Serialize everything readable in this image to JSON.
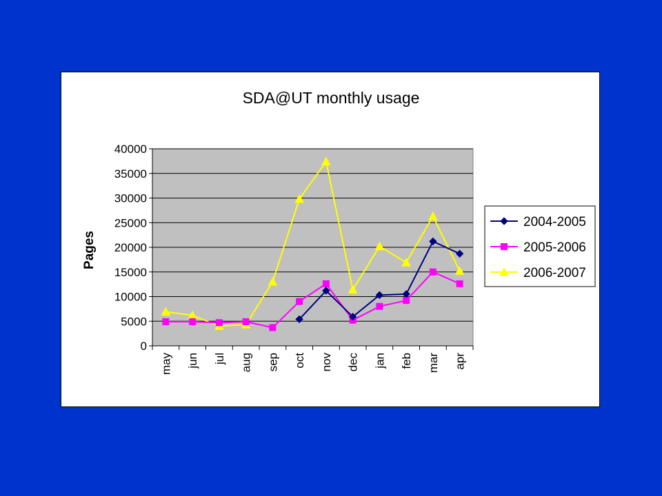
{
  "slide": {
    "background_color": "#0033cc"
  },
  "chart_data": {
    "type": "line",
    "title": "SDA@UT monthly usage",
    "xlabel": "",
    "ylabel": "Pages",
    "categories": [
      "may",
      "jun",
      "jul",
      "aug",
      "sep",
      "oct",
      "nov",
      "dec",
      "jan",
      "feb",
      "mar",
      "apr"
    ],
    "ylim": [
      0,
      40000
    ],
    "yticks": [
      0,
      5000,
      10000,
      15000,
      20000,
      25000,
      30000,
      35000,
      40000
    ],
    "grid": true,
    "plot_background": "#c0c0c0",
    "legend_position": "right",
    "series": [
      {
        "name": "2004-2005",
        "color": "#000080",
        "marker": "diamond",
        "values": [
          null,
          null,
          null,
          null,
          null,
          5400,
          11200,
          5900,
          10300,
          10500,
          21200,
          18700
        ]
      },
      {
        "name": "2005-2006",
        "color": "#ff00ff",
        "marker": "square",
        "values": [
          4900,
          4900,
          4700,
          4900,
          3700,
          9000,
          12600,
          5200,
          8000,
          9200,
          15000,
          12600
        ]
      },
      {
        "name": "2006-2007",
        "color": "#ffff00",
        "marker": "triangle",
        "values": [
          6900,
          6200,
          4000,
          4300,
          13000,
          29800,
          37400,
          11400,
          20200,
          16900,
          26300,
          15200
        ]
      }
    ]
  }
}
